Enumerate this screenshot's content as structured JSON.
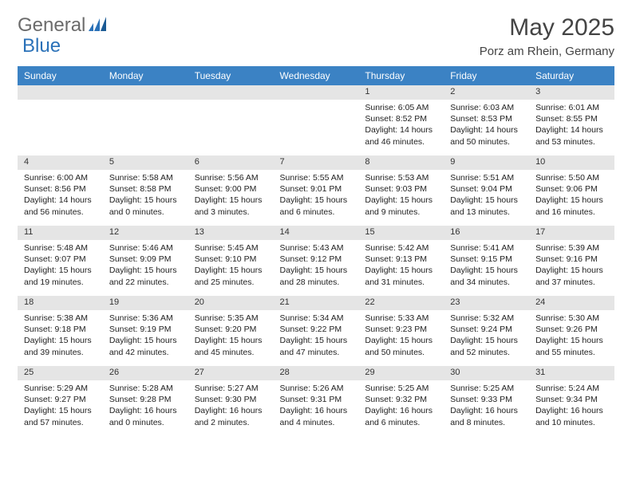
{
  "logo": {
    "general": "General",
    "blue": "Blue"
  },
  "title": "May 2025",
  "location": "Porz am Rhein, Germany",
  "colors": {
    "header_bg": "#3b82c4",
    "header_text": "#ffffff",
    "daynum_bg": "#e5e5e5",
    "logo_gray": "#6b6b6b",
    "logo_blue": "#2a71b8",
    "text": "#222222"
  },
  "weekdays": [
    "Sunday",
    "Monday",
    "Tuesday",
    "Wednesday",
    "Thursday",
    "Friday",
    "Saturday"
  ],
  "weeks": [
    {
      "nums": [
        "",
        "",
        "",
        "",
        "1",
        "2",
        "3"
      ],
      "cells": [
        null,
        null,
        null,
        null,
        {
          "sunrise": "Sunrise: 6:05 AM",
          "sunset": "Sunset: 8:52 PM",
          "day1": "Daylight: 14 hours",
          "day2": "and 46 minutes."
        },
        {
          "sunrise": "Sunrise: 6:03 AM",
          "sunset": "Sunset: 8:53 PM",
          "day1": "Daylight: 14 hours",
          "day2": "and 50 minutes."
        },
        {
          "sunrise": "Sunrise: 6:01 AM",
          "sunset": "Sunset: 8:55 PM",
          "day1": "Daylight: 14 hours",
          "day2": "and 53 minutes."
        }
      ]
    },
    {
      "nums": [
        "4",
        "5",
        "6",
        "7",
        "8",
        "9",
        "10"
      ],
      "cells": [
        {
          "sunrise": "Sunrise: 6:00 AM",
          "sunset": "Sunset: 8:56 PM",
          "day1": "Daylight: 14 hours",
          "day2": "and 56 minutes."
        },
        {
          "sunrise": "Sunrise: 5:58 AM",
          "sunset": "Sunset: 8:58 PM",
          "day1": "Daylight: 15 hours",
          "day2": "and 0 minutes."
        },
        {
          "sunrise": "Sunrise: 5:56 AM",
          "sunset": "Sunset: 9:00 PM",
          "day1": "Daylight: 15 hours",
          "day2": "and 3 minutes."
        },
        {
          "sunrise": "Sunrise: 5:55 AM",
          "sunset": "Sunset: 9:01 PM",
          "day1": "Daylight: 15 hours",
          "day2": "and 6 minutes."
        },
        {
          "sunrise": "Sunrise: 5:53 AM",
          "sunset": "Sunset: 9:03 PM",
          "day1": "Daylight: 15 hours",
          "day2": "and 9 minutes."
        },
        {
          "sunrise": "Sunrise: 5:51 AM",
          "sunset": "Sunset: 9:04 PM",
          "day1": "Daylight: 15 hours",
          "day2": "and 13 minutes."
        },
        {
          "sunrise": "Sunrise: 5:50 AM",
          "sunset": "Sunset: 9:06 PM",
          "day1": "Daylight: 15 hours",
          "day2": "and 16 minutes."
        }
      ]
    },
    {
      "nums": [
        "11",
        "12",
        "13",
        "14",
        "15",
        "16",
        "17"
      ],
      "cells": [
        {
          "sunrise": "Sunrise: 5:48 AM",
          "sunset": "Sunset: 9:07 PM",
          "day1": "Daylight: 15 hours",
          "day2": "and 19 minutes."
        },
        {
          "sunrise": "Sunrise: 5:46 AM",
          "sunset": "Sunset: 9:09 PM",
          "day1": "Daylight: 15 hours",
          "day2": "and 22 minutes."
        },
        {
          "sunrise": "Sunrise: 5:45 AM",
          "sunset": "Sunset: 9:10 PM",
          "day1": "Daylight: 15 hours",
          "day2": "and 25 minutes."
        },
        {
          "sunrise": "Sunrise: 5:43 AM",
          "sunset": "Sunset: 9:12 PM",
          "day1": "Daylight: 15 hours",
          "day2": "and 28 minutes."
        },
        {
          "sunrise": "Sunrise: 5:42 AM",
          "sunset": "Sunset: 9:13 PM",
          "day1": "Daylight: 15 hours",
          "day2": "and 31 minutes."
        },
        {
          "sunrise": "Sunrise: 5:41 AM",
          "sunset": "Sunset: 9:15 PM",
          "day1": "Daylight: 15 hours",
          "day2": "and 34 minutes."
        },
        {
          "sunrise": "Sunrise: 5:39 AM",
          "sunset": "Sunset: 9:16 PM",
          "day1": "Daylight: 15 hours",
          "day2": "and 37 minutes."
        }
      ]
    },
    {
      "nums": [
        "18",
        "19",
        "20",
        "21",
        "22",
        "23",
        "24"
      ],
      "cells": [
        {
          "sunrise": "Sunrise: 5:38 AM",
          "sunset": "Sunset: 9:18 PM",
          "day1": "Daylight: 15 hours",
          "day2": "and 39 minutes."
        },
        {
          "sunrise": "Sunrise: 5:36 AM",
          "sunset": "Sunset: 9:19 PM",
          "day1": "Daylight: 15 hours",
          "day2": "and 42 minutes."
        },
        {
          "sunrise": "Sunrise: 5:35 AM",
          "sunset": "Sunset: 9:20 PM",
          "day1": "Daylight: 15 hours",
          "day2": "and 45 minutes."
        },
        {
          "sunrise": "Sunrise: 5:34 AM",
          "sunset": "Sunset: 9:22 PM",
          "day1": "Daylight: 15 hours",
          "day2": "and 47 minutes."
        },
        {
          "sunrise": "Sunrise: 5:33 AM",
          "sunset": "Sunset: 9:23 PM",
          "day1": "Daylight: 15 hours",
          "day2": "and 50 minutes."
        },
        {
          "sunrise": "Sunrise: 5:32 AM",
          "sunset": "Sunset: 9:24 PM",
          "day1": "Daylight: 15 hours",
          "day2": "and 52 minutes."
        },
        {
          "sunrise": "Sunrise: 5:30 AM",
          "sunset": "Sunset: 9:26 PM",
          "day1": "Daylight: 15 hours",
          "day2": "and 55 minutes."
        }
      ]
    },
    {
      "nums": [
        "25",
        "26",
        "27",
        "28",
        "29",
        "30",
        "31"
      ],
      "cells": [
        {
          "sunrise": "Sunrise: 5:29 AM",
          "sunset": "Sunset: 9:27 PM",
          "day1": "Daylight: 15 hours",
          "day2": "and 57 minutes."
        },
        {
          "sunrise": "Sunrise: 5:28 AM",
          "sunset": "Sunset: 9:28 PM",
          "day1": "Daylight: 16 hours",
          "day2": "and 0 minutes."
        },
        {
          "sunrise": "Sunrise: 5:27 AM",
          "sunset": "Sunset: 9:30 PM",
          "day1": "Daylight: 16 hours",
          "day2": "and 2 minutes."
        },
        {
          "sunrise": "Sunrise: 5:26 AM",
          "sunset": "Sunset: 9:31 PM",
          "day1": "Daylight: 16 hours",
          "day2": "and 4 minutes."
        },
        {
          "sunrise": "Sunrise: 5:25 AM",
          "sunset": "Sunset: 9:32 PM",
          "day1": "Daylight: 16 hours",
          "day2": "and 6 minutes."
        },
        {
          "sunrise": "Sunrise: 5:25 AM",
          "sunset": "Sunset: 9:33 PM",
          "day1": "Daylight: 16 hours",
          "day2": "and 8 minutes."
        },
        {
          "sunrise": "Sunrise: 5:24 AM",
          "sunset": "Sunset: 9:34 PM",
          "day1": "Daylight: 16 hours",
          "day2": "and 10 minutes."
        }
      ]
    }
  ]
}
